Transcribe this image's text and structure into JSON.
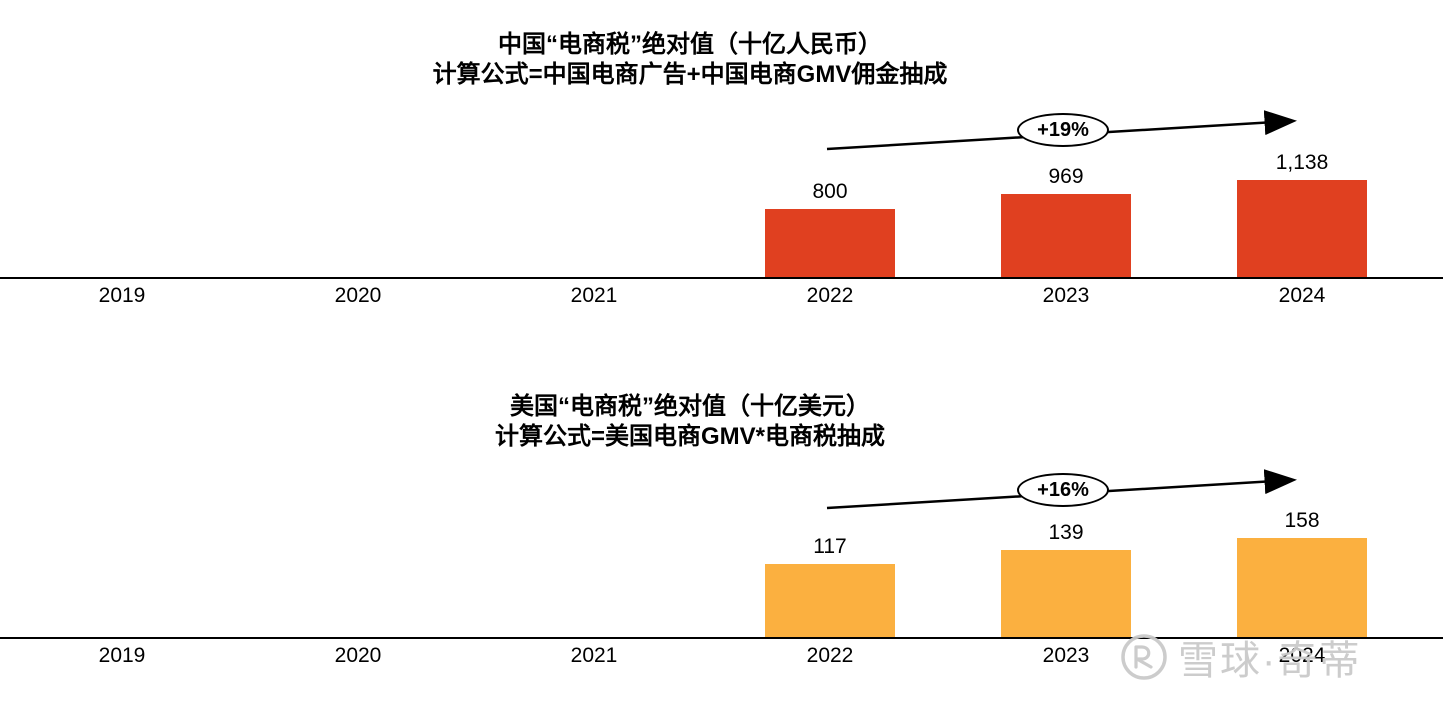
{
  "chart_data": [
    {
      "type": "bar",
      "title": "中国“电商税”绝对值（十亿人民币）",
      "subtitle": "计算公式=中国电商广告+中国电商GMV佣金抽成",
      "categories": [
        "2019",
        "2020",
        "2021",
        "2022",
        "2023",
        "2024"
      ],
      "values": [
        null,
        null,
        null,
        800,
        969,
        1138
      ],
      "value_labels": [
        "",
        "",
        "",
        "800",
        "969",
        "1,138"
      ],
      "growth_annotation": "+19%",
      "bar_color": "#E04020",
      "xlabel": "",
      "ylabel": "",
      "ylim": [
        0,
        1200
      ],
      "grid": false,
      "legend": false
    },
    {
      "type": "bar",
      "title": "美国“电商税”绝对值（十亿美元）",
      "subtitle": "计算公式=美国电商GMV*电商税抽成",
      "categories": [
        "2019",
        "2020",
        "2021",
        "2022",
        "2023",
        "2024"
      ],
      "values": [
        null,
        null,
        null,
        117,
        139,
        158
      ],
      "value_labels": [
        "",
        "",
        "",
        "117",
        "139",
        "158"
      ],
      "growth_annotation": "+16%",
      "bar_color": "#FBB040",
      "xlabel": "",
      "ylabel": "",
      "ylim": [
        0,
        170
      ],
      "grid": false,
      "legend": false
    }
  ],
  "watermark": {
    "text": "雪球·奇蒂"
  }
}
